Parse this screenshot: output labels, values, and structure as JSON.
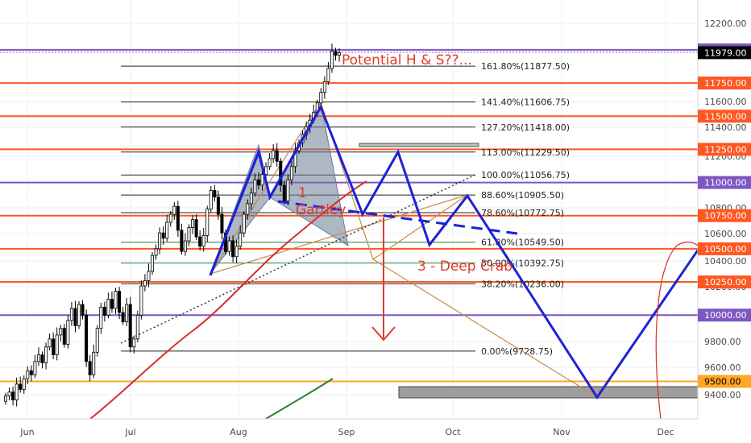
{
  "chart_data": {
    "type": "candlestick",
    "y_axis": {
      "ticks": [
        "12200.00",
        "11600.00",
        "11400.00",
        "11200.00",
        "10800.00",
        "10600.00",
        "10400.00",
        "10200.00",
        "9800.00",
        "9600.00",
        "9400.00"
      ],
      "range": [
        9230,
        12490
      ],
      "position": "right"
    },
    "x_axis": {
      "ticks": [
        "Jun",
        "Jul",
        "Aug",
        "Sep",
        "Oct",
        "Nov",
        "Dec"
      ]
    },
    "grid": true,
    "price_levels": [
      {
        "label": "12000.00",
        "value": 12000,
        "color": "#7e57c2"
      },
      {
        "label": "11750.00",
        "value": 11750,
        "color": "#ff5722"
      },
      {
        "label": "11500.00",
        "value": 11500,
        "color": "#ff5722"
      },
      {
        "label": "11250.00",
        "value": 11250,
        "color": "#ff5722"
      },
      {
        "label": "11000.00",
        "value": 11000,
        "color": "#7e57c2"
      },
      {
        "label": "10750.00",
        "value": 10750,
        "color": "#ff5722"
      },
      {
        "label": "10500.00",
        "value": 10500,
        "color": "#ff5722"
      },
      {
        "label": "10250.00",
        "value": 10250,
        "color": "#ff5722"
      },
      {
        "label": "10000.00",
        "value": 10000,
        "color": "#7e57c2"
      },
      {
        "label": "9500.00",
        "value": 9500,
        "color": "#ffa726"
      }
    ],
    "current_price": {
      "label": "11979.00",
      "value": 11979
    },
    "fibonacci": [
      {
        "label": "161.80%(11877.50)",
        "value": 11877.5
      },
      {
        "label": "141.40%(11606.75)",
        "value": 11606.75
      },
      {
        "label": "127.20%(11418.00)",
        "value": 11418
      },
      {
        "label": "113.00%(11229.50)",
        "value": 11229.5
      },
      {
        "label": "100.00%(11056.75)",
        "value": 11056.75
      },
      {
        "label": "88.60%(10905.50)",
        "value": 10905.5
      },
      {
        "label": "78.60%(10772.75)",
        "value": 10772.75
      },
      {
        "label": "61.80%(10549.50)",
        "value": 10549.5
      },
      {
        "label": "50.00%(10392.75)",
        "value": 10392.75
      },
      {
        "label": "38.20%(10236.00)",
        "value": 10236
      },
      {
        "label": "0.00%(9728.75)",
        "value": 9728.75
      }
    ],
    "annotations": [
      {
        "text": "Potential H & S??...",
        "color": "#e03b2b"
      },
      {
        "text": "1",
        "color": "#e03b2b"
      },
      {
        "text": "Gartley",
        "color": "#e03b2b"
      },
      {
        "text": "3 - Deep Crab",
        "color": "#e03b2b"
      }
    ],
    "projection_path": [
      {
        "x": "Jul 22",
        "y": 10300
      },
      {
        "x": "Aug 5",
        "y": 10900
      },
      {
        "x": "Aug 24",
        "y": 11570
      },
      {
        "x": "Sep 9",
        "y": 10760
      },
      {
        "x": "Sep 16",
        "y": 11230
      },
      {
        "x": "Sep 24",
        "y": 10530
      },
      {
        "x": "Oct 5",
        "y": 10900
      },
      {
        "x": "Nov 12",
        "y": 9380
      },
      {
        "x": "Dec 15",
        "y": 10490
      }
    ],
    "colors": {
      "up_candle": "#ffffff",
      "down_candle": "#000000",
      "projection": "#1e22d6",
      "pattern_fill": "#6b7b93",
      "ma_red": "#d32f2f",
      "ma_green": "#2e7d32",
      "deep_crab": "#c58b4b",
      "price_tag": "#000000",
      "level_tag_orange": "#ff5722",
      "level_tag_9500": "#ffa726"
    }
  }
}
